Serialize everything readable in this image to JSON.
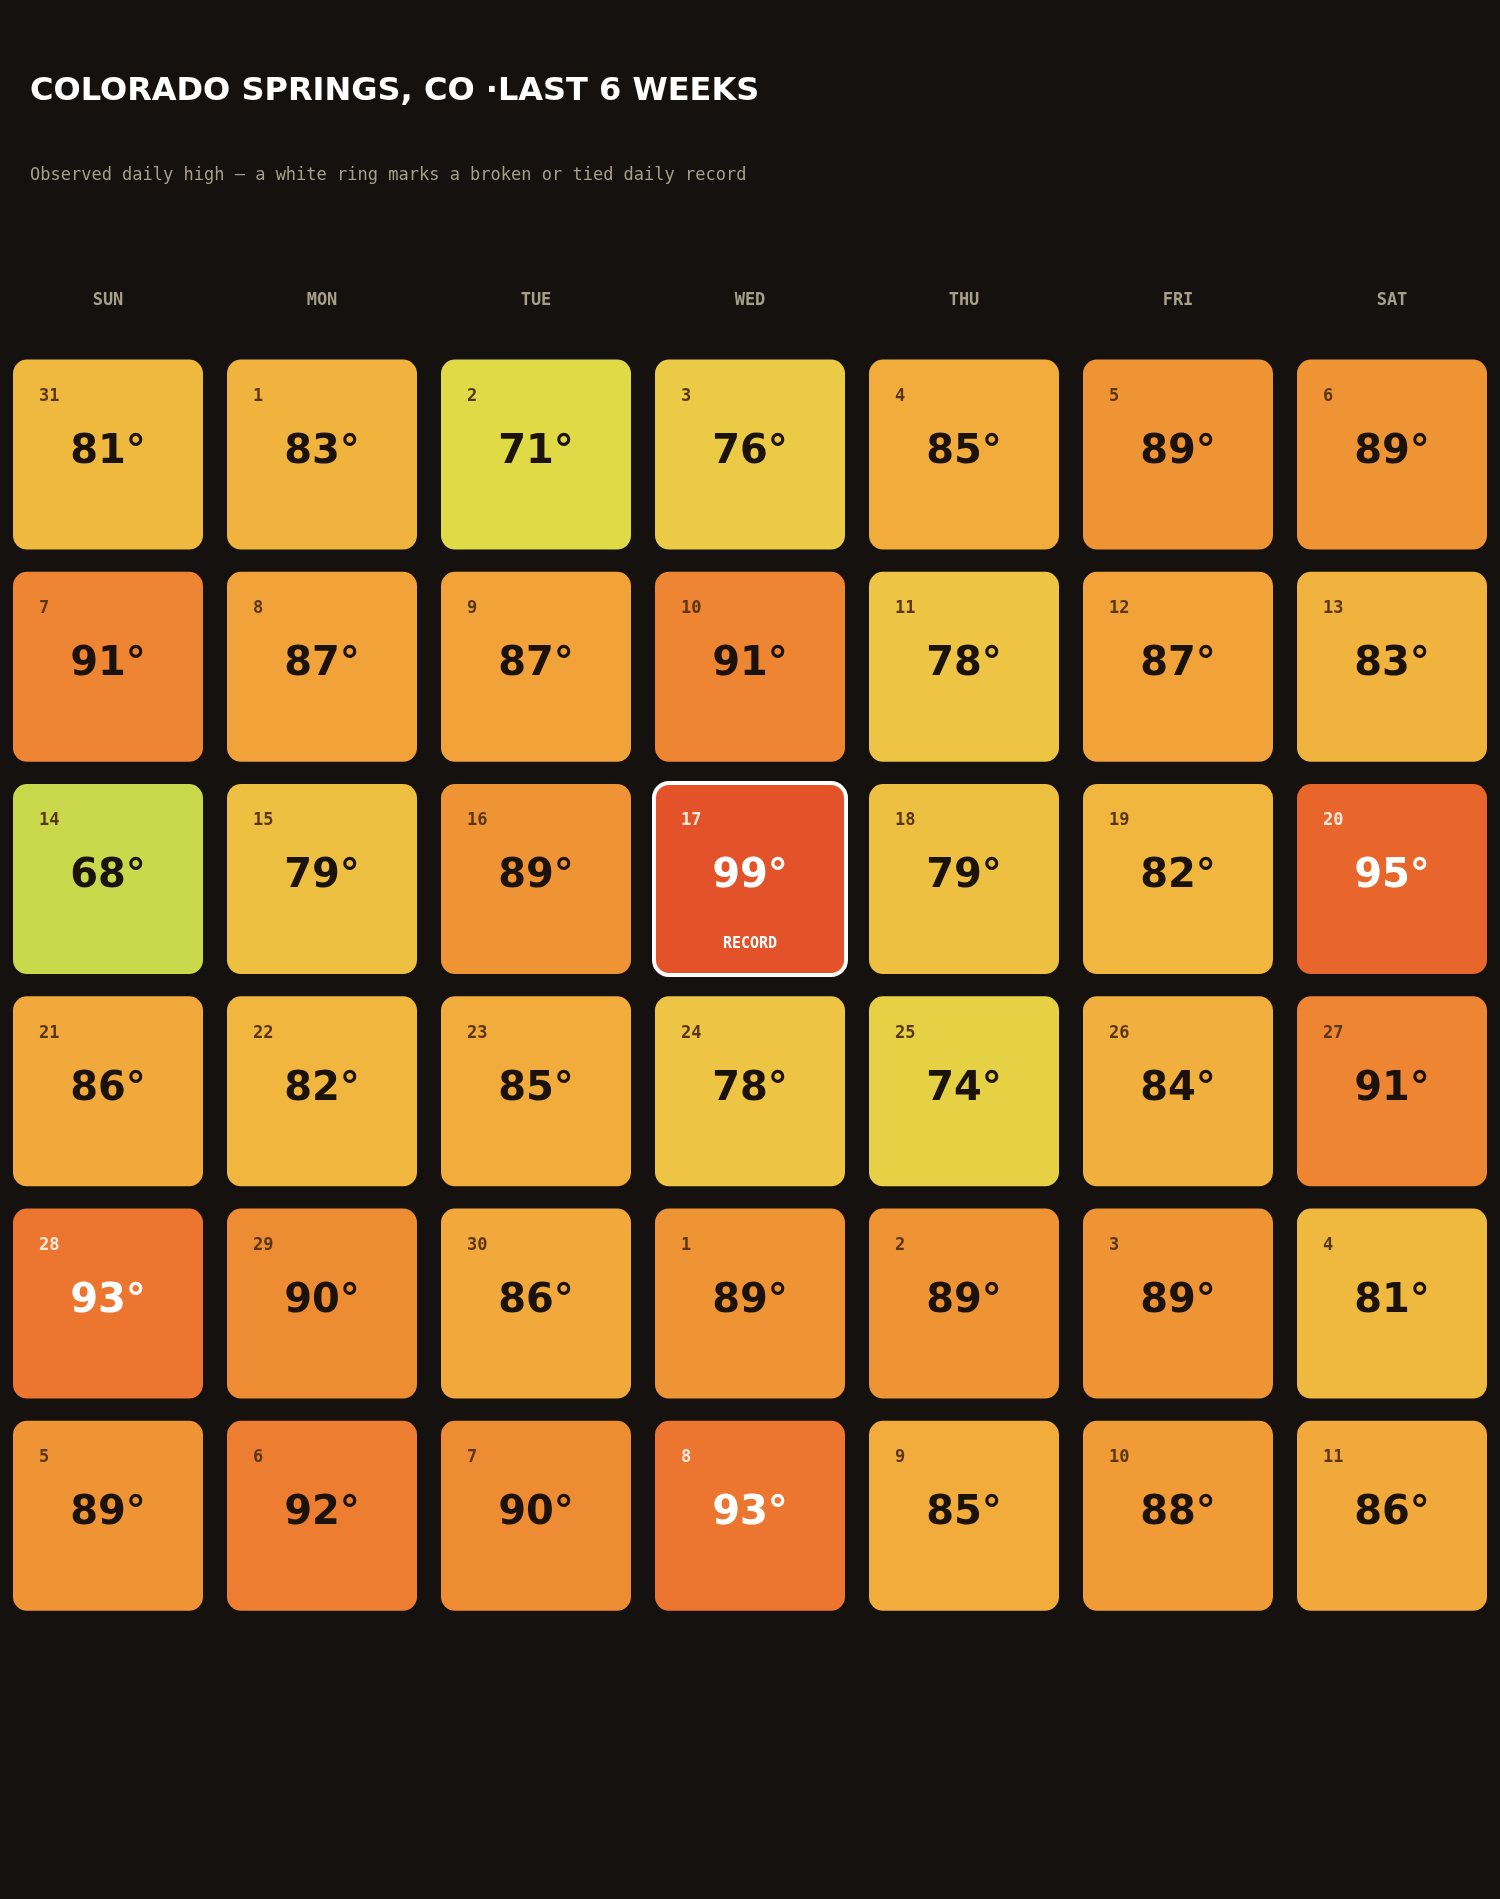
{
  "chart_data": {
    "type": "heatmap",
    "title": "COLORADO SPRINGS, CO ·LAST 6 WEEKS",
    "subtitle": "Observed daily high — a white ring marks a broken or tied daily record",
    "categories": [
      "SUN",
      "MON",
      "TUE",
      "WED",
      "THU",
      "FRI",
      "SAT"
    ],
    "y_categories": [
      null,
      null,
      null,
      null,
      null,
      null
    ],
    "cells": [
      [
        81,
        83,
        71,
        76,
        85,
        89,
        89
      ],
      [
        91,
        87,
        87,
        91,
        78,
        87,
        83
      ],
      [
        68,
        79,
        89,
        99,
        79,
        82,
        95
      ],
      [
        86,
        82,
        85,
        78,
        74,
        84,
        91
      ],
      [
        93,
        90,
        86,
        89,
        89,
        89,
        81
      ],
      [
        89,
        92,
        90,
        93,
        85,
        88,
        86
      ]
    ],
    "cell_labels": [
      [
        "81°",
        "83°",
        "71°",
        "76°",
        "85°",
        "89°",
        "89°"
      ],
      [
        "91°",
        "87°",
        "87°",
        "91°",
        "78°",
        "87°",
        "83°"
      ],
      [
        "68°",
        "79°",
        "89°",
        "99°",
        "79°",
        "82°",
        "95°"
      ],
      [
        "86°",
        "82°",
        "85°",
        "78°",
        "74°",
        "84°",
        "91°"
      ],
      [
        "93°",
        "90°",
        "86°",
        "89°",
        "89°",
        "89°",
        "81°"
      ],
      [
        "89°",
        "92°",
        "90°",
        "93°",
        "85°",
        "88°",
        "86°"
      ]
    ],
    "annotations": [
      "31",
      "1",
      "2",
      "3",
      "4",
      "5",
      "6",
      "7",
      "8",
      "9",
      "10",
      "11",
      "12",
      "13",
      "14",
      "15",
      "16",
      "17",
      "RECORD",
      "18",
      "19",
      "20",
      "21",
      "22",
      "23",
      "24",
      "25",
      "26",
      "27",
      "28",
      "29",
      "30",
      "1",
      "2",
      "3",
      "4",
      "5",
      "6",
      "7",
      "8",
      "9",
      "10",
      "11"
    ],
    "legend": false
  }
}
